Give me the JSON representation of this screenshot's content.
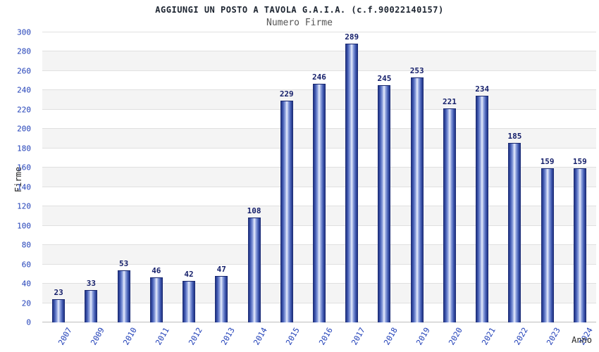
{
  "chart_data": {
    "type": "bar",
    "title": "AGGIUNGI UN POSTO A TAVOLA G.A.I.A. (c.f.90022140157)",
    "subtitle": "Numero Firme",
    "xlabel": "Anno",
    "ylabel": "Firme",
    "categories": [
      "2007",
      "2009",
      "2010",
      "2011",
      "2012",
      "2013",
      "2014",
      "2015",
      "2016",
      "2017",
      "2018",
      "2019",
      "2020",
      "2021",
      "2022",
      "2023",
      "2024"
    ],
    "values": [
      23,
      33,
      53,
      46,
      42,
      47,
      108,
      229,
      246,
      289,
      245,
      253,
      221,
      234,
      185,
      159,
      159
    ],
    "ylim": [
      0,
      300
    ],
    "ytick_step": 20,
    "grid": true,
    "legend": "none",
    "colors": {
      "bar_dark": "#17266e",
      "bar_mid": "#93a6e0",
      "bar_light": "#e9eefc",
      "axis_tick_label": "#2140b8",
      "value_label": "#16206b",
      "gridline": "#e0e0e0",
      "band_alt": "#f4f4f4"
    }
  }
}
